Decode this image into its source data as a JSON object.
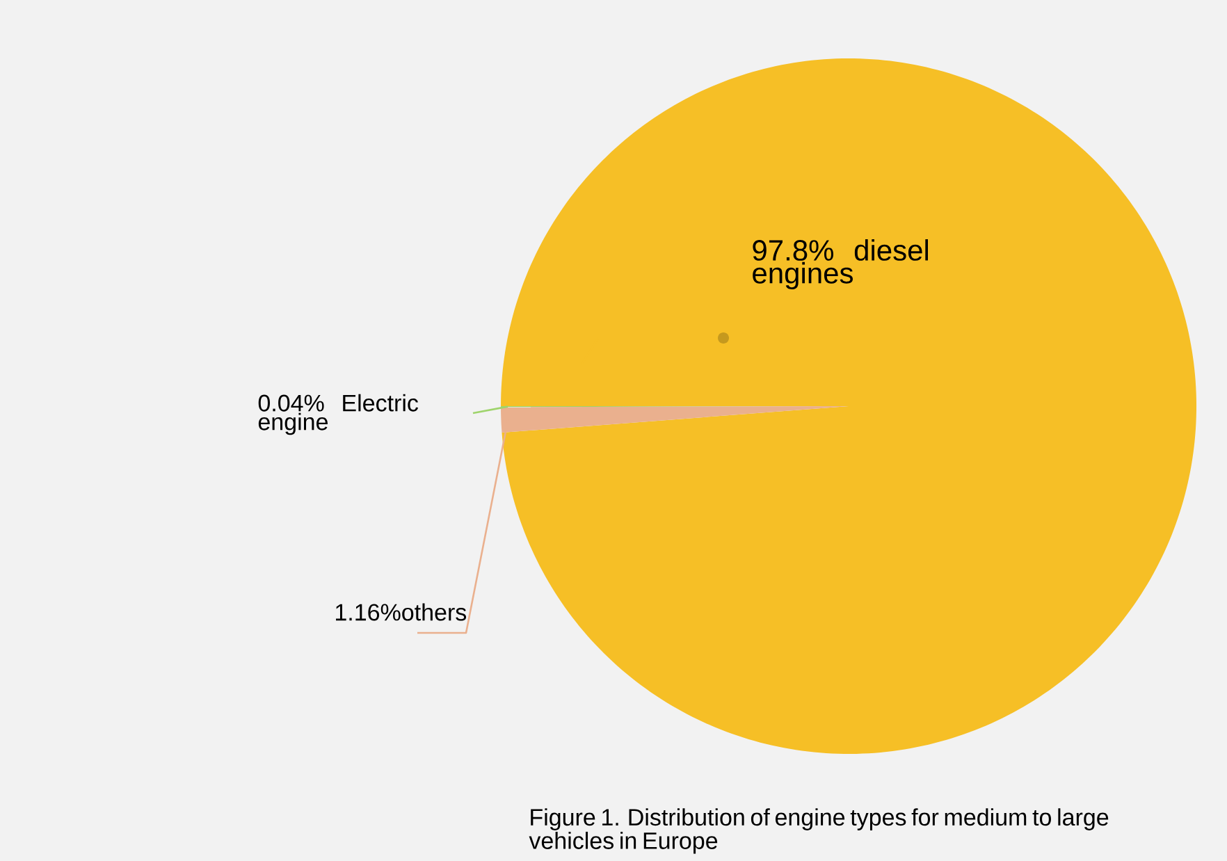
{
  "chart_data": {
    "type": "pie",
    "categories": [
      "97.8% diesel engines",
      "0.04% Electric engine",
      "1.16%others"
    ],
    "values": [
      97.8,
      0.04,
      1.16
    ],
    "colors": [
      "#f6bf26",
      "#9fd46c",
      "#eab08e"
    ],
    "annotations": [
      "Figure 1. Distribution of engine types for medium to large vehicles in Europe"
    ]
  }
}
